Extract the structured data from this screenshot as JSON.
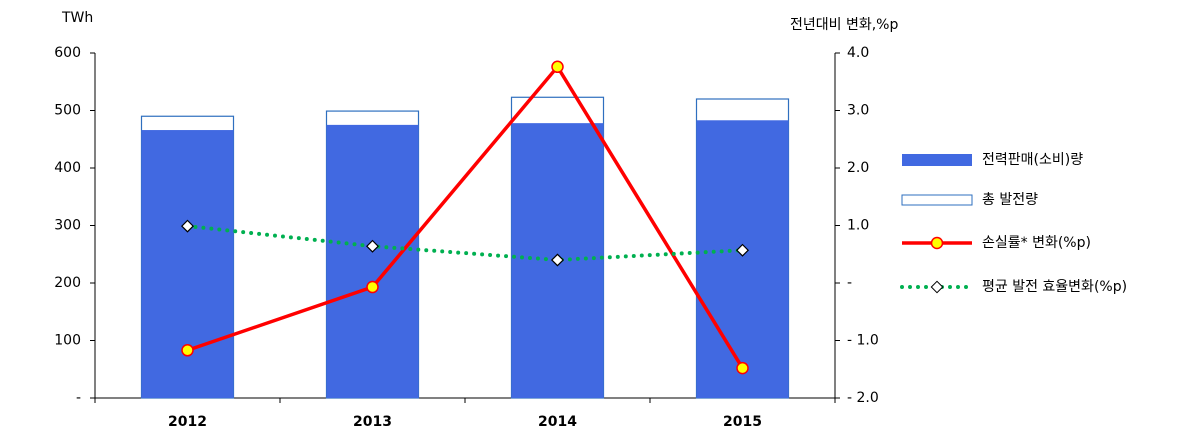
{
  "chart_data": {
    "type": "bar-line",
    "y_unit": "TWh",
    "y2_unit": "전년대비 변화,%p",
    "categories": [
      "2012",
      "2013",
      "2014",
      "2015"
    ],
    "series": [
      {
        "name": "전력판매(소비)량",
        "type": "bar",
        "color": "#4169e1",
        "values": [
          466,
          475,
          478,
          483
        ]
      },
      {
        "name": "총 발전량",
        "type": "bar-outline",
        "color": "#2e6fbf",
        "values": [
          490,
          499,
          523,
          520
        ]
      },
      {
        "name": "손실률* 변화(%p)",
        "type": "line",
        "axis": "y2",
        "color": "#ff0000",
        "values": [
          -1.17,
          -0.07,
          3.76,
          -1.48
        ]
      },
      {
        "name": "평균 발전 효율변화(%p)",
        "type": "dotted-line",
        "axis": "y2",
        "color": "#00b050",
        "values": [
          0.99,
          0.64,
          0.4,
          0.57
        ]
      }
    ],
    "ylim": [
      0,
      600
    ],
    "yticks": [
      {
        "value": 0,
        "label": "-"
      },
      100,
      200,
      300,
      400,
      500,
      600
    ],
    "y2lim": [
      -2,
      4
    ],
    "y2ticks": [
      {
        "value": -2,
        "label": "- 2.0"
      },
      {
        "value": -1,
        "label": "- 1.0"
      },
      {
        "value": 0,
        "label": "-"
      },
      {
        "value": 1,
        "label": "1.0"
      },
      {
        "value": 2,
        "label": "2.0"
      },
      {
        "value": 3,
        "label": "3.0"
      },
      {
        "value": 4,
        "label": "4.0"
      }
    ]
  }
}
